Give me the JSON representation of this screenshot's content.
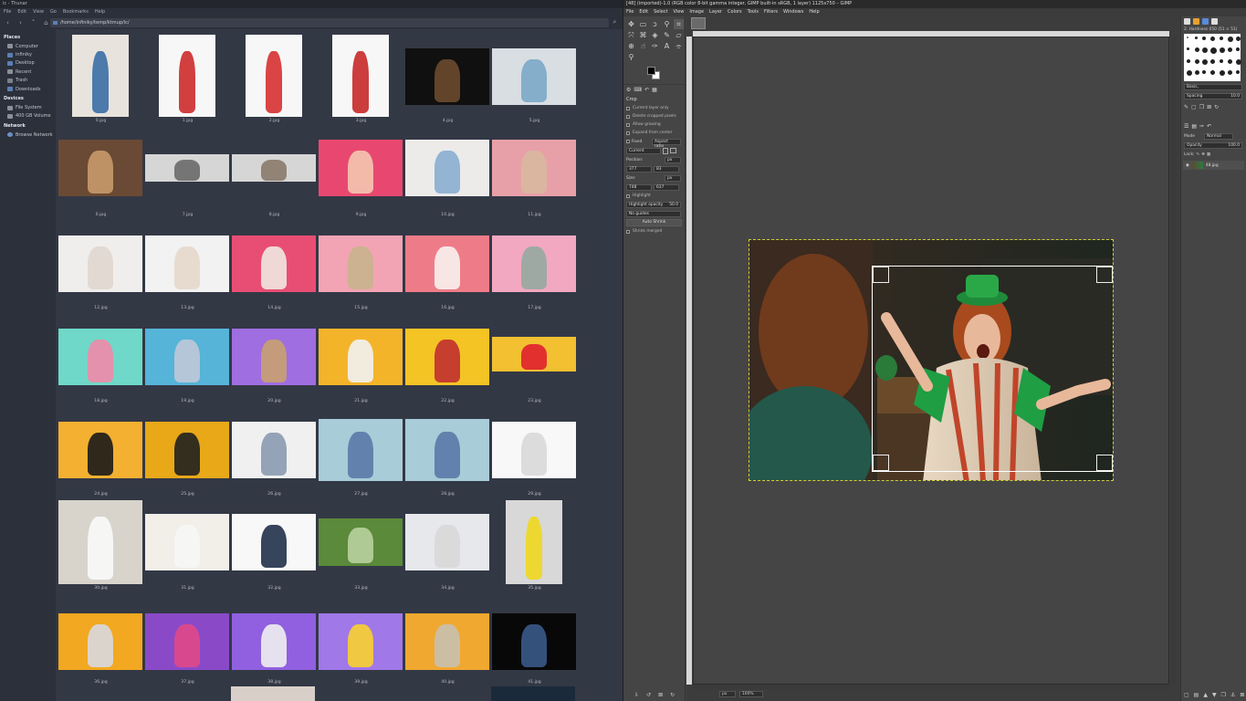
{
  "thunar": {
    "title": "ic - Thunar",
    "menu": [
      "File",
      "Edit",
      "View",
      "Go",
      "Bookmarks",
      "Help"
    ],
    "path": "/home/infiniky/temp/ktmup/ic/",
    "sidebar": {
      "places_header": "Places",
      "places": [
        "Computer",
        "infiniky",
        "Desktop",
        "Recent",
        "Trash",
        "Downloads"
      ],
      "devices_header": "Devices",
      "devices": [
        "File System",
        "400 GB Volume"
      ],
      "network_header": "Network",
      "network": [
        "Browse Network"
      ]
    },
    "files": [
      "0.jpg",
      "1.jpg",
      "2.jpg",
      "3.jpg",
      "4.jpg",
      "5.jpg",
      "6.jpg",
      "7.jpg",
      "8.jpg",
      "9.jpg",
      "10.jpg",
      "11.jpg",
      "12.jpg",
      "13.jpg",
      "14.jpg",
      "15.jpg",
      "16.jpg",
      "17.jpg",
      "18.jpg",
      "19.jpg",
      "20.jpg",
      "21.jpg",
      "22.jpg",
      "23.jpg",
      "24.jpg",
      "25.jpg",
      "26.jpg",
      "27.jpg",
      "28.jpg",
      "29.jpg",
      "30.jpg",
      "31.jpg",
      "32.jpg",
      "33.jpg",
      "34.jpg",
      "35.jpg",
      "36.jpg",
      "37.jpg",
      "38.jpg",
      "39.jpg",
      "40.jpg",
      "41.jpg"
    ]
  },
  "gimp": {
    "title": "[48] (imported)-1.0 (RGB color 8-bit gamma integer, GIMP built-in sRGB, 1 layer) 1125x750 – GIMP",
    "menu": [
      "File",
      "Edit",
      "Select",
      "View",
      "Image",
      "Layer",
      "Colors",
      "Tools",
      "Filters",
      "Windows",
      "Help"
    ],
    "tool_options": {
      "title": "Crop",
      "checks": [
        "Current layer only",
        "Delete cropped pixels",
        "Allow growing",
        "Expand from center"
      ],
      "fixed_label": "Fixed",
      "fixed_value": "Aspect ratio",
      "current": "Current",
      "position_label": "Position:",
      "position_unit": "px",
      "position_x": "377",
      "position_y": "83",
      "size_label": "Size:",
      "size_unit": "px",
      "size_w": "748",
      "size_h": "637",
      "highlight": "Highlight",
      "highlight_opacity_label": "Highlight opacity",
      "highlight_opacity": "50.0",
      "guides": "No guides",
      "auto_shrink": "Auto Shrink",
      "shrink_merged": "Shrink merged"
    },
    "status": {
      "unit": "px",
      "zoom": "100%"
    },
    "brushes": {
      "name": "2. Hardness 050 (51 × 51)",
      "filter": "Basic,",
      "spacing_label": "Spacing",
      "spacing": "10.0"
    },
    "layers": {
      "mode_label": "Mode",
      "mode": "Normal",
      "opacity_label": "Opacity",
      "opacity": "100.0",
      "lock_label": "Lock:",
      "layer_name": "48.jpg"
    }
  },
  "colors": {
    "thunar_bg": "#333845",
    "gimp_bg": "#454545",
    "selection": "#cfcf33"
  }
}
